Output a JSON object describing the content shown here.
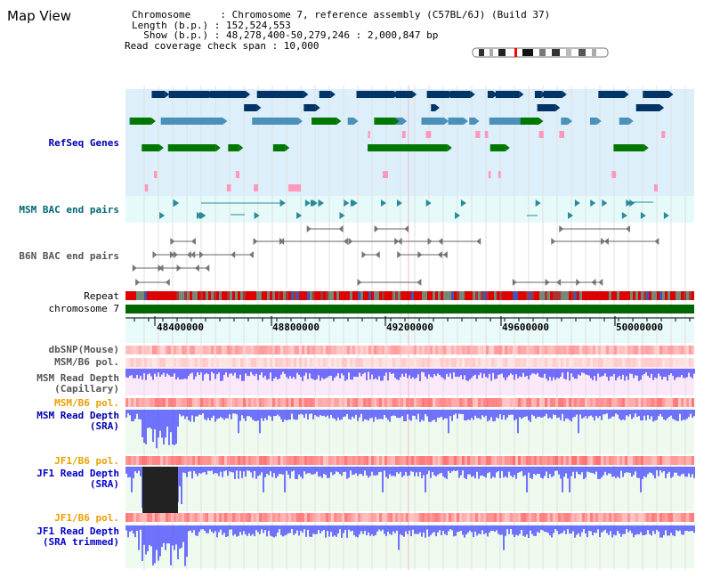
{
  "page": {
    "title": "Map View"
  },
  "info": {
    "chromosome": "Chromosome     : Chromosome 7, reference assembly (C57BL/6J) (Build 37)",
    "length": "Length (b.p.) : 152,524,553",
    "show": "  Show (b.p.) : 48,278,400-50,279,246 : 2,000,847 bp",
    "coverage": "Read coverage check span : 10,000"
  },
  "tracks": {
    "refseq": "RefSeq Genes",
    "msm_bac": "MSM BAC end pairs",
    "b6n_bac": "B6N BAC end pairs",
    "repeat": "Repeat",
    "chromosome": "chromosome 7",
    "dbsnp": "dbSNP(Mouse)",
    "msm_b6_pol": "MSM/B6 pol.",
    "msm_depth_cap": "MSM Read Depth\n(Capillary)",
    "msm_b6_pol_2": "MSM/B6 pol.",
    "msm_depth_sra": "MSM Read Depth\n(SRA)",
    "jf1_b6_pol": "JF1/B6 pol.",
    "jf1_depth_sra": "JF1 Read Depth\n(SRA)",
    "jf1_b6_pol_2": "JF1/B6 pol.",
    "jf1_depth_trim": "JF1 Read Depth\n(SRA trimmed)"
  },
  "axis": {
    "ticks": [
      "48400000",
      "48800000",
      "49200000",
      "49600000",
      "50000000"
    ]
  },
  "colors": {
    "gene_navy": "#003366",
    "gene_blue": "#4a90b8",
    "gene_green": "#007700",
    "gene_pink": "#ff99bb",
    "bac_teal": "#2a8a9a",
    "depth_blue": "#4444ff",
    "chromosome_green": "#006600"
  }
}
